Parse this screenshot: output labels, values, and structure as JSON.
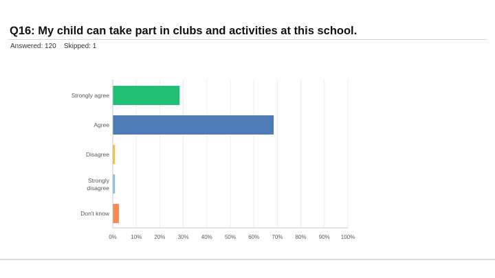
{
  "header": {
    "title": "Q16: My child can take part in clubs and activities at this school.",
    "answered": "Answered: 120",
    "skipped": "Skipped: 1"
  },
  "chart_data": {
    "type": "bar",
    "orientation": "horizontal",
    "categories": [
      "Strongly agree",
      "Agree",
      "Disagree",
      "Strongly disagree",
      "Don't know"
    ],
    "values": [
      28.3,
      68.3,
      0.8,
      0.8,
      2.5
    ],
    "colors": [
      "#1fc073",
      "#4e7ab5",
      "#f3c03a",
      "#87c2e0",
      "#f68a58"
    ],
    "xlim": [
      0,
      100
    ],
    "xticks": [
      "0%",
      "10%",
      "20%",
      "30%",
      "40%",
      "50%",
      "60%",
      "70%",
      "80%",
      "90%",
      "100%"
    ],
    "grid": true
  }
}
